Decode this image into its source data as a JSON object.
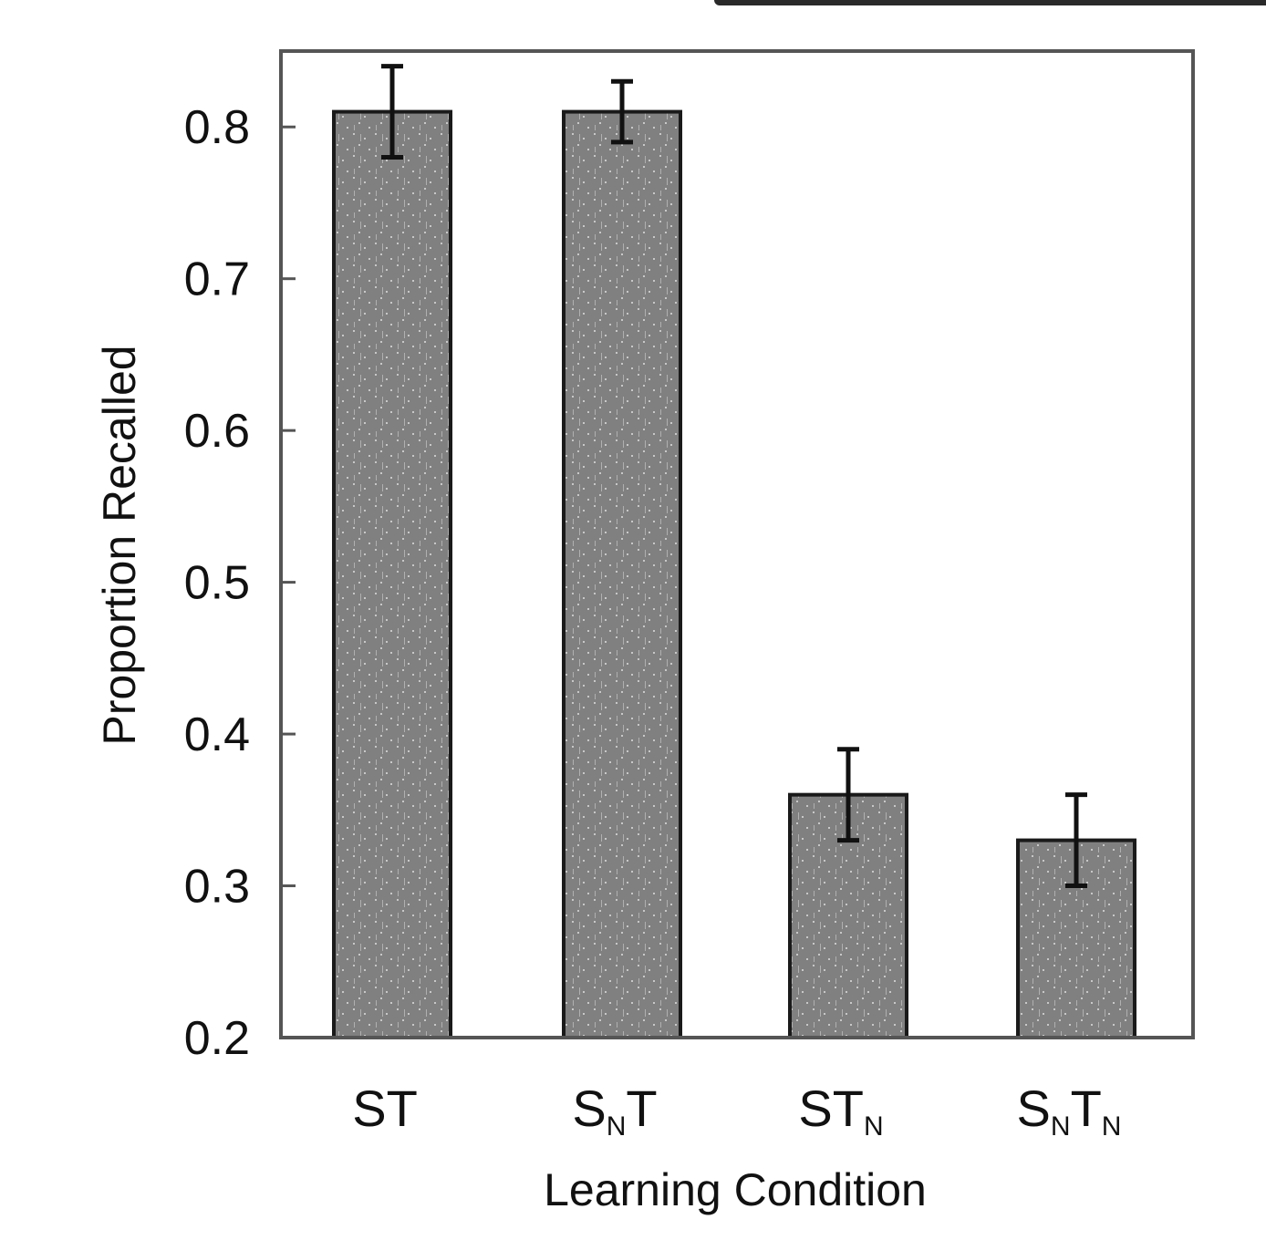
{
  "chart_data": {
    "type": "bar",
    "categories": [
      {
        "main": "S",
        "sub": "",
        "main2": "T",
        "sub2": ""
      },
      {
        "main": "S",
        "sub": "N",
        "main2": "T",
        "sub2": ""
      },
      {
        "main": "S",
        "sub": "",
        "main2": "T",
        "sub2": "N"
      },
      {
        "main": "S",
        "sub": "N",
        "main2": "T",
        "sub2": "N"
      }
    ],
    "values": [
      0.81,
      0.81,
      0.36,
      0.33
    ],
    "error_low": [
      0.78,
      0.79,
      0.33,
      0.3
    ],
    "error_high": [
      0.84,
      0.83,
      0.39,
      0.36
    ],
    "xlabel": "Learning Condition",
    "ylabel": "Proportion Recalled",
    "ylim": [
      0.2,
      0.85
    ],
    "yticks": [
      "0.2",
      "0.3",
      "0.4",
      "0.5",
      "0.6",
      "0.7",
      "0.8"
    ],
    "ytick_values": [
      0.2,
      0.3,
      0.4,
      0.5,
      0.6,
      0.7,
      0.8
    ],
    "bar_color": "#808080",
    "grid": false,
    "legend": "none"
  }
}
